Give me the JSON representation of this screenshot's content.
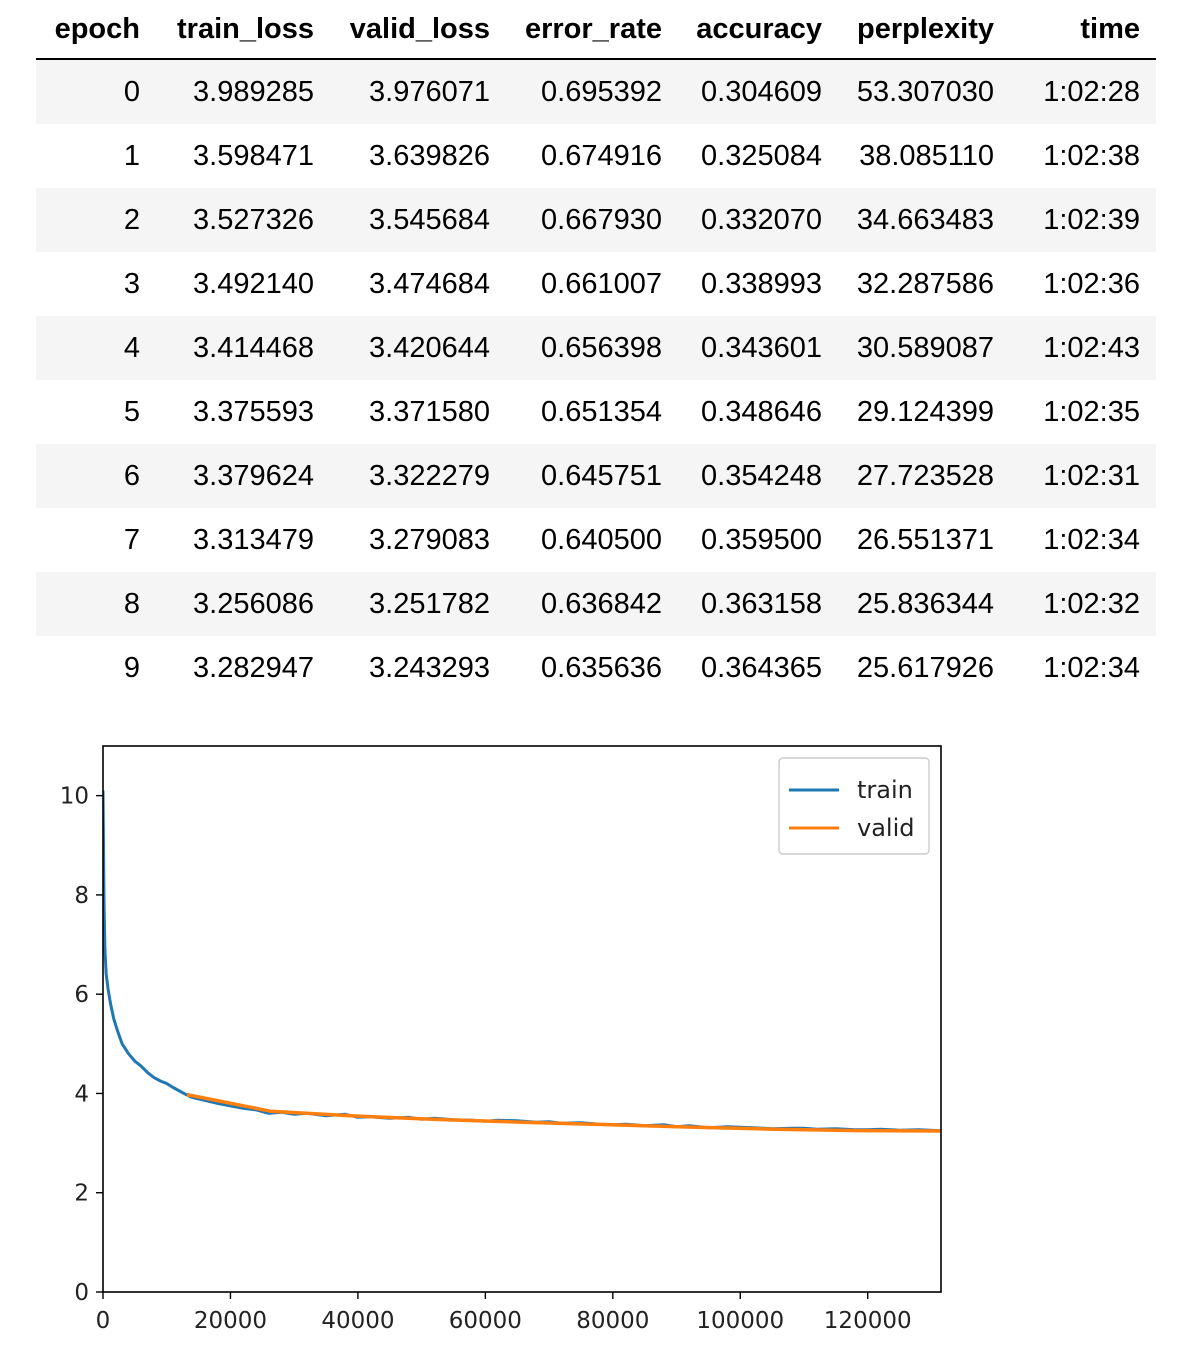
{
  "table": {
    "headers": [
      "epoch",
      "train_loss",
      "valid_loss",
      "error_rate",
      "accuracy",
      "perplexity",
      "time"
    ],
    "rows": [
      [
        "0",
        "3.989285",
        "3.976071",
        "0.695392",
        "0.304609",
        "53.307030",
        "1:02:28"
      ],
      [
        "1",
        "3.598471",
        "3.639826",
        "0.674916",
        "0.325084",
        "38.085110",
        "1:02:38"
      ],
      [
        "2",
        "3.527326",
        "3.545684",
        "0.667930",
        "0.332070",
        "34.663483",
        "1:02:39"
      ],
      [
        "3",
        "3.492140",
        "3.474684",
        "0.661007",
        "0.338993",
        "32.287586",
        "1:02:36"
      ],
      [
        "4",
        "3.414468",
        "3.420644",
        "0.656398",
        "0.343601",
        "30.589087",
        "1:02:43"
      ],
      [
        "5",
        "3.375593",
        "3.371580",
        "0.651354",
        "0.348646",
        "29.124399",
        "1:02:35"
      ],
      [
        "6",
        "3.379624",
        "3.322279",
        "0.645751",
        "0.354248",
        "27.723528",
        "1:02:31"
      ],
      [
        "7",
        "3.313479",
        "3.279083",
        "0.640500",
        "0.359500",
        "26.551371",
        "1:02:34"
      ],
      [
        "8",
        "3.256086",
        "3.251782",
        "0.636842",
        "0.363158",
        "25.836344",
        "1:02:32"
      ],
      [
        "9",
        "3.282947",
        "3.243293",
        "0.635636",
        "0.364365",
        "25.617926",
        "1:02:34"
      ]
    ]
  },
  "chart_data": {
    "type": "line",
    "title": "",
    "xlabel": "",
    "ylabel": "",
    "xlim": [
      0,
      131500
    ],
    "ylim": [
      0,
      11
    ],
    "xticks": [
      0,
      20000,
      40000,
      60000,
      80000,
      100000,
      120000
    ],
    "yticks": [
      0,
      2,
      4,
      6,
      8,
      10
    ],
    "grid": false,
    "legend_position": "top-right",
    "series": [
      {
        "name": "train",
        "color": "#1f77b4",
        "x": [
          0,
          150,
          300,
          500,
          800,
          1200,
          1700,
          2300,
          3000,
          4000,
          5000,
          6000,
          7000,
          8000,
          9000,
          10000,
          11000,
          12000,
          13000,
          14000,
          16000,
          18000,
          20000,
          22000,
          24000,
          26000,
          28000,
          30000,
          32000,
          35000,
          38000,
          40000,
          42000,
          45000,
          48000,
          50000,
          52000,
          55000,
          58000,
          60000,
          62000,
          65000,
          68000,
          70000,
          72000,
          75000,
          78000,
          80000,
          82000,
          85000,
          88000,
          90000,
          92000,
          95000,
          98000,
          100000,
          102000,
          105000,
          108000,
          110000,
          112000,
          115000,
          118000,
          120000,
          122000,
          125000,
          128000,
          131500
        ],
        "values": [
          10.1,
          7.9,
          6.9,
          6.4,
          6.1,
          5.8,
          5.5,
          5.25,
          5.0,
          4.8,
          4.65,
          4.55,
          4.42,
          4.32,
          4.25,
          4.2,
          4.12,
          4.05,
          3.98,
          3.92,
          3.86,
          3.8,
          3.75,
          3.7,
          3.67,
          3.6,
          3.62,
          3.58,
          3.6,
          3.55,
          3.58,
          3.52,
          3.53,
          3.5,
          3.52,
          3.48,
          3.5,
          3.47,
          3.46,
          3.44,
          3.46,
          3.45,
          3.42,
          3.43,
          3.4,
          3.41,
          3.38,
          3.37,
          3.38,
          3.35,
          3.37,
          3.33,
          3.35,
          3.31,
          3.33,
          3.32,
          3.31,
          3.29,
          3.3,
          3.3,
          3.28,
          3.29,
          3.27,
          3.27,
          3.28,
          3.26,
          3.27,
          3.25
        ]
      },
      {
        "name": "valid",
        "color": "#ff7f0e",
        "x": [
          13174,
          26348,
          39522,
          52696,
          65870,
          79044,
          92218,
          105392,
          118566,
          131740
        ],
        "values": [
          3.976071,
          3.639826,
          3.545684,
          3.474684,
          3.420644,
          3.37158,
          3.322279,
          3.279083,
          3.251782,
          3.243293
        ]
      }
    ]
  }
}
